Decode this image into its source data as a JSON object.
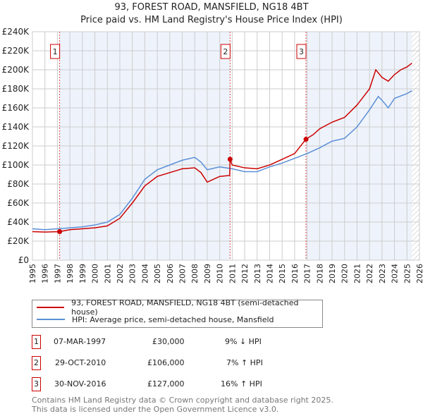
{
  "chart_data": {
    "type": "line",
    "title": "93, FOREST ROAD, MANSFIELD, NG18 4BT",
    "subtitle": "Price paid vs. HM Land Registry's House Price Index (HPI)",
    "xlim": [
      1995,
      2026
    ],
    "ylim": [
      0,
      240000
    ],
    "x_ticks": [
      "1995",
      "1996",
      "1997",
      "1998",
      "1999",
      "2000",
      "2001",
      "2002",
      "2003",
      "2004",
      "2005",
      "2006",
      "2007",
      "2008",
      "2009",
      "2010",
      "2011",
      "2012",
      "2013",
      "2014",
      "2015",
      "2016",
      "2017",
      "2018",
      "2019",
      "2020",
      "2021",
      "2022",
      "2023",
      "2024",
      "2025",
      "2026"
    ],
    "y_ticks": [
      "£0",
      "£20K",
      "£40K",
      "£60K",
      "£80K",
      "£100K",
      "£120K",
      "£140K",
      "£160K",
      "£180K",
      "£200K",
      "£220K",
      "£240K"
    ],
    "grid": true,
    "series": [
      {
        "name": "93, FOREST ROAD, MANSFIELD, NG18 4BT (semi-detached house)",
        "color": "#cc0000",
        "x": [
          1995,
          1996,
          1997.18,
          1998,
          1999,
          2000,
          2001,
          2002,
          2003,
          2004,
          2005,
          2006,
          2007,
          2008,
          2008.5,
          2009,
          2010,
          2010.8,
          2010.83,
          2011,
          2012,
          2013,
          2014,
          2015,
          2016,
          2016.9,
          2017.5,
          2018,
          2019,
          2020,
          2021,
          2022,
          2022.5,
          2023,
          2023.5,
          2024,
          2024.5,
          2025,
          2025.4
        ],
        "y": [
          30000,
          29500,
          30000,
          32000,
          33000,
          34000,
          36000,
          44000,
          60000,
          78000,
          88000,
          92000,
          96000,
          97000,
          92000,
          82000,
          88000,
          89000,
          106000,
          100000,
          97000,
          96000,
          100000,
          106000,
          112000,
          127000,
          132000,
          138000,
          145000,
          150000,
          163000,
          180000,
          200000,
          192000,
          188000,
          195000,
          200000,
          203000,
          207000
        ]
      },
      {
        "name": "HPI: Average price, semi-detached house, Mansfield",
        "color": "#5b8fd6",
        "x": [
          1995,
          1996,
          1997,
          1998,
          1999,
          2000,
          2001,
          2002,
          2003,
          2004,
          2005,
          2006,
          2007,
          2008,
          2008.5,
          2009,
          2010,
          2011,
          2012,
          2013,
          2014,
          2015,
          2016,
          2017,
          2018,
          2019,
          2020,
          2021,
          2022,
          2022.7,
          2023,
          2023.5,
          2024,
          2025,
          2025.4
        ],
        "y": [
          33000,
          32000,
          33000,
          34000,
          35000,
          37000,
          40000,
          48000,
          65000,
          85000,
          95000,
          100000,
          105000,
          108000,
          103000,
          95000,
          98000,
          96000,
          93000,
          93000,
          98000,
          102000,
          107000,
          112000,
          118000,
          125000,
          128000,
          140000,
          158000,
          172000,
          168000,
          160000,
          170000,
          175000,
          178000
        ]
      }
    ],
    "sales": [
      {
        "label": "1",
        "x": 1997.18,
        "y": 30000
      },
      {
        "label": "2",
        "x": 2010.83,
        "y": 106000
      },
      {
        "label": "3",
        "x": 2016.91,
        "y": 127000
      }
    ]
  },
  "table": [
    {
      "n": "1",
      "date": "07-MAR-1997",
      "price": "£30,000",
      "hpi": "9% ↓ HPI"
    },
    {
      "n": "2",
      "date": "29-OCT-2010",
      "price": "£106,000",
      "hpi": "7% ↑ HPI"
    },
    {
      "n": "3",
      "date": "30-NOV-2016",
      "price": "£127,000",
      "hpi": "16% ↑ HPI"
    }
  ],
  "footer": [
    "Contains HM Land Registry data © Crown copyright and database right 2025.",
    "This data is licensed under the Open Government Licence v3.0."
  ]
}
